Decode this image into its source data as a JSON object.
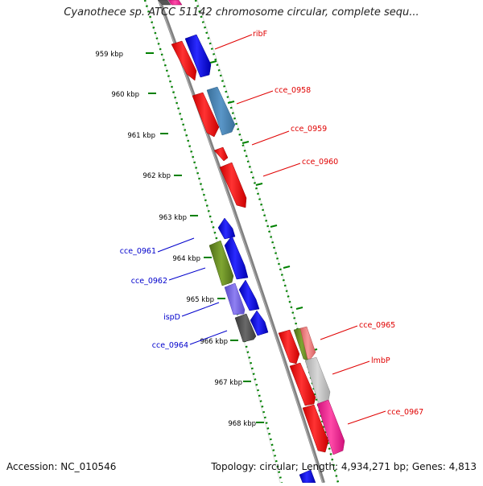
{
  "map": {
    "title": "Cyanothece sp. ATCC 51142 chromosome circular, complete sequ...",
    "accession": "Accession: NC_010546",
    "topology": "Topology: circular; Length: 4,934,271 bp; Genes: 4,813",
    "kbp_labels": [
      "959 kbp",
      "960 kbp",
      "961 kbp",
      "962 kbp",
      "963 kbp",
      "964 kbp",
      "965 kbp",
      "966 kbp",
      "967 kbp",
      "968 kbp"
    ],
    "right_gene_labels": [
      "ribF",
      "cce_0958",
      "cce_0959",
      "cce_0960",
      "cce_0965",
      "lmbP",
      "cce_0967"
    ],
    "left_gene_labels": [
      "cce_0961",
      "cce_0962",
      "ispD",
      "cce_0964"
    ],
    "colors": {
      "red": "#ff0000",
      "blue": "#0000ff",
      "steelblue": "#4682b4",
      "olive": "#6b8e23",
      "purple": "#7b68ee",
      "gray": "#555555",
      "lightgray": "#c0c0c0",
      "pink": "#ff1493",
      "salmon": "#f08080",
      "green_ticks": "#008000",
      "backbone": "#808080"
    }
  }
}
